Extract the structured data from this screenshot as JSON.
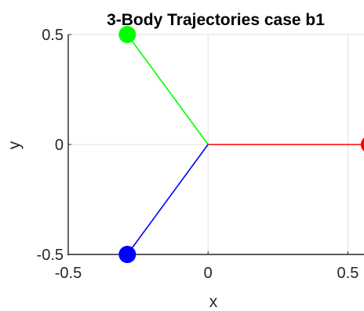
{
  "chart_data": {
    "type": "line",
    "title": "3-Body Trajectories case b1",
    "xlabel": "x",
    "ylabel": "y",
    "xlim": [
      -0.5,
      0.5577
    ],
    "ylim": [
      -0.5,
      0.5
    ],
    "xticks": [
      -0.5,
      0,
      0.5
    ],
    "yticks": [
      -0.5,
      0,
      0.5
    ],
    "xtick_labels": [
      "-0.5",
      "0",
      "0.5"
    ],
    "ytick_labels": [
      "-0.5",
      "0",
      "0.5"
    ],
    "grid": true,
    "series": [
      {
        "color": "#ff0000",
        "x": [
          0,
          0.577
        ],
        "y": [
          0,
          0
        ]
      },
      {
        "color": "#00ff00",
        "x": [
          0,
          -0.2887
        ],
        "y": [
          0,
          0.5
        ]
      },
      {
        "color": "#0000ff",
        "x": [
          0,
          -0.2887
        ],
        "y": [
          0,
          -0.5
        ]
      }
    ],
    "markers": [
      {
        "color": "#ff0000",
        "x": 0.577,
        "y": 0
      },
      {
        "color": "#00ff00",
        "x": -0.2887,
        "y": 0.5
      },
      {
        "color": "#0000ff",
        "x": -0.2887,
        "y": -0.5
      }
    ]
  }
}
